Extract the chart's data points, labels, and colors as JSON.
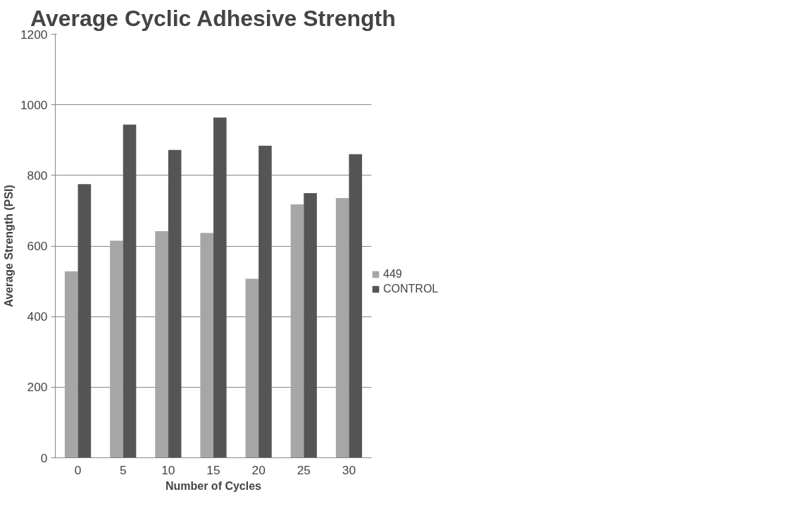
{
  "chart_data": {
    "type": "bar",
    "title": "Average Cyclic Adhesive Strength",
    "xlabel": "Number of Cycles",
    "ylabel": "Average Strength (PSI)",
    "categories": [
      "0",
      "5",
      "10",
      "15",
      "20",
      "25",
      "30"
    ],
    "series": [
      {
        "name": "449",
        "color": "#a6a6a6",
        "values": [
          528,
          615,
          642,
          637,
          507,
          718,
          736
        ]
      },
      {
        "name": "CONTROL",
        "color": "#555555",
        "values": [
          775,
          944,
          872,
          964,
          884,
          750,
          860
        ]
      }
    ],
    "ylim": [
      0,
      1200
    ],
    "yticks": [
      0,
      200,
      400,
      600,
      800,
      1000,
      1200
    ],
    "grid": "y",
    "legend": "right"
  }
}
